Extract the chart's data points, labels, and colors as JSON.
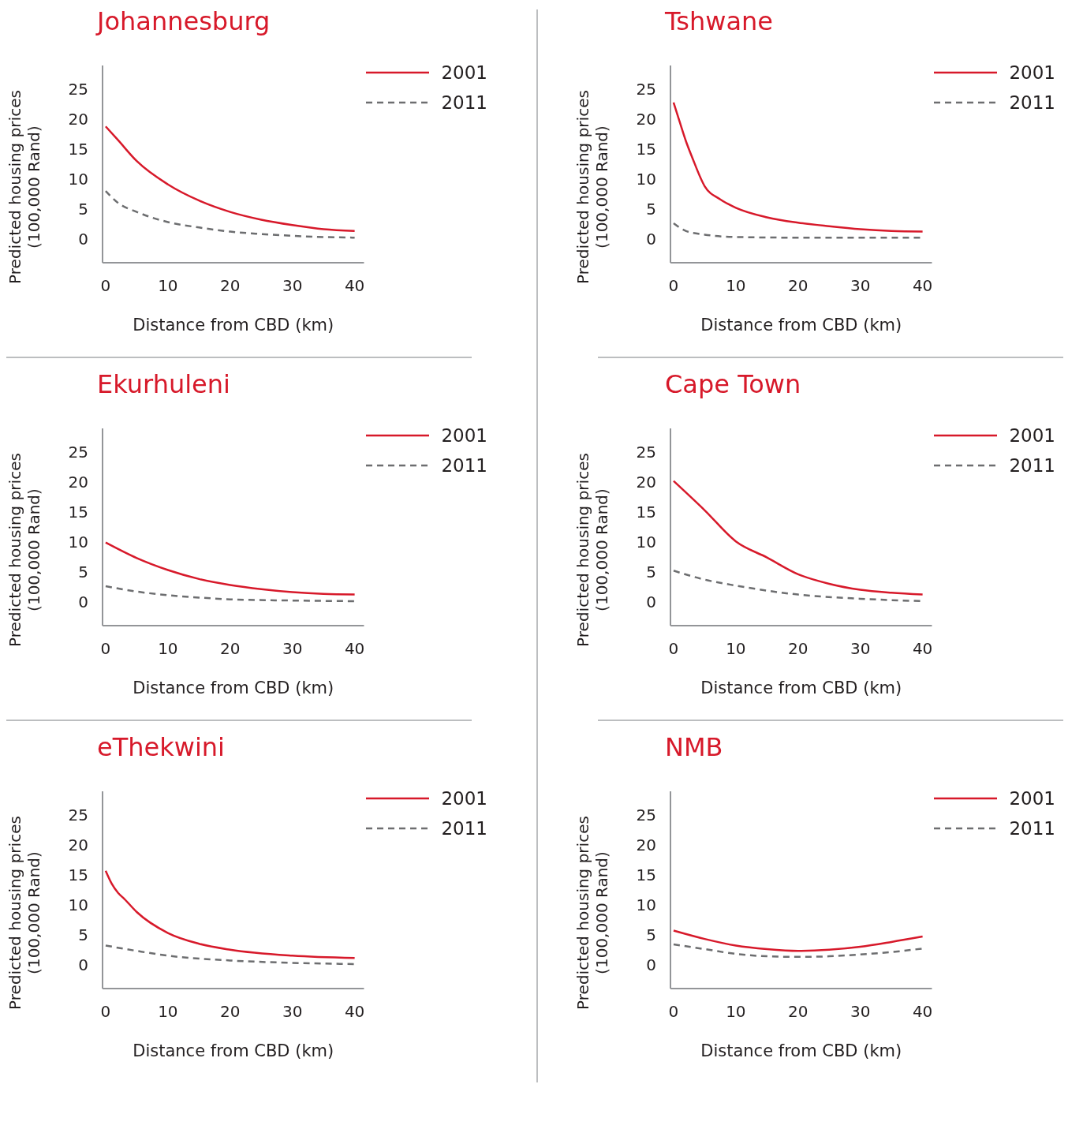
{
  "chart_data": [
    {
      "type": "line",
      "title": "Johannesburg",
      "xlabel": "Distance from CBD (km)",
      "ylabel": "Predicted housing prices (100,000 Rand)",
      "xlim": [
        -0.5,
        41.5
      ],
      "xticks": [
        0,
        10,
        20,
        30,
        40
      ],
      "ylim": [
        -4,
        29
      ],
      "yticks": [
        0,
        5,
        10,
        15,
        20,
        25
      ],
      "legend": "top right",
      "series": [
        {
          "name": "2001",
          "color": "#d7192a",
          "line_style": "solid",
          "x": [
            0,
            2,
            5,
            10,
            15,
            20,
            25,
            30,
            35,
            40
          ],
          "values": [
            18.8,
            16.5,
            13,
            9.1,
            6.4,
            4.5,
            3.2,
            2.3,
            1.6,
            1.3
          ]
        },
        {
          "name": "2011",
          "color": "#6d6e70",
          "line_style": "dashed",
          "x": [
            0,
            2,
            5,
            10,
            15,
            20,
            25,
            30,
            35,
            40
          ],
          "values": [
            8,
            6,
            4.5,
            2.8,
            1.9,
            1.2,
            0.8,
            0.5,
            0.3,
            0.2
          ]
        }
      ]
    },
    {
      "type": "line",
      "title": "Tshwane",
      "xlabel": "Distance from CBD (km)",
      "ylabel": "Predicted housing prices (100,000 Rand)",
      "xlim": [
        -0.5,
        41.5
      ],
      "xticks": [
        0,
        10,
        20,
        30,
        40
      ],
      "ylim": [
        -4,
        29
      ],
      "yticks": [
        0,
        5,
        10,
        15,
        20,
        25
      ],
      "legend": "top right",
      "series": [
        {
          "name": "2001",
          "color": "#d7192a",
          "line_style": "solid",
          "x": [
            0,
            1,
            2,
            3,
            5,
            7.5,
            10,
            15,
            20,
            25,
            30,
            35,
            40
          ],
          "values": [
            22.8,
            19.5,
            16.3,
            13.6,
            8.8,
            6.6,
            5.2,
            3.6,
            2.7,
            2.1,
            1.6,
            1.3,
            1.2
          ]
        },
        {
          "name": "2011",
          "color": "#6d6e70",
          "line_style": "dashed",
          "x": [
            0,
            2,
            5,
            10,
            20,
            30,
            40
          ],
          "values": [
            2.6,
            1.3,
            0.7,
            0.3,
            0.2,
            0.2,
            0.2
          ]
        }
      ]
    },
    {
      "type": "line",
      "title": "Ekurhuleni",
      "xlabel": "Distance from CBD (km)",
      "ylabel": "Predicted housing prices (100,000 Rand)",
      "xlim": [
        -0.5,
        41.5
      ],
      "xticks": [
        0,
        10,
        20,
        30,
        40
      ],
      "ylim": [
        -4,
        29
      ],
      "yticks": [
        0,
        5,
        10,
        15,
        20,
        25
      ],
      "legend": "top right",
      "series": [
        {
          "name": "2001",
          "color": "#d7192a",
          "line_style": "solid",
          "x": [
            0,
            5,
            10,
            15,
            20,
            25,
            30,
            35,
            40
          ],
          "values": [
            9.9,
            7.3,
            5.3,
            3.8,
            2.8,
            2.1,
            1.6,
            1.3,
            1.2
          ]
        },
        {
          "name": "2011",
          "color": "#6d6e70",
          "line_style": "dashed",
          "x": [
            0,
            5,
            10,
            15,
            20,
            30,
            40
          ],
          "values": [
            2.6,
            1.7,
            1.1,
            0.7,
            0.4,
            0.2,
            0.1
          ]
        }
      ]
    },
    {
      "type": "line",
      "title": "Cape Town",
      "xlabel": "Distance from CBD (km)",
      "ylabel": "Predicted housing prices (100,000 Rand)",
      "xlim": [
        -0.5,
        41.5
      ],
      "xticks": [
        0,
        10,
        20,
        30,
        40
      ],
      "ylim": [
        -4,
        29
      ],
      "yticks": [
        0,
        5,
        10,
        15,
        20,
        25
      ],
      "legend": "top right",
      "series": [
        {
          "name": "2001",
          "color": "#d7192a",
          "line_style": "solid",
          "x": [
            0,
            5,
            10,
            15,
            20,
            25,
            30,
            35,
            40
          ],
          "values": [
            20.2,
            15.3,
            10.1,
            7.4,
            4.6,
            3,
            2,
            1.5,
            1.2
          ]
        },
        {
          "name": "2011",
          "color": "#6d6e70",
          "line_style": "dashed",
          "x": [
            0,
            5,
            10,
            20,
            30,
            40
          ],
          "values": [
            5.2,
            3.7,
            2.7,
            1.2,
            0.5,
            0.1
          ]
        }
      ]
    },
    {
      "type": "line",
      "title": "eThekwini",
      "xlabel": "Distance from CBD (km)",
      "ylabel": "Predicted housing prices (100,000 Rand)",
      "xlim": [
        -0.5,
        41.5
      ],
      "xticks": [
        0,
        10,
        20,
        30,
        40
      ],
      "ylim": [
        -4,
        29
      ],
      "yticks": [
        0,
        5,
        10,
        15,
        20,
        25
      ],
      "legend": "top right",
      "series": [
        {
          "name": "2001",
          "color": "#d7192a",
          "line_style": "solid",
          "x": [
            0,
            1,
            2,
            3,
            5,
            10,
            15,
            20,
            30,
            40
          ],
          "values": [
            15.7,
            13.5,
            12,
            11,
            8.8,
            5.3,
            3.5,
            2.5,
            1.5,
            1.1
          ]
        },
        {
          "name": "2011",
          "color": "#6d6e70",
          "line_style": "dashed",
          "x": [
            0,
            5,
            10,
            20,
            30,
            40
          ],
          "values": [
            3.2,
            2.3,
            1.5,
            0.7,
            0.3,
            0.1
          ]
        }
      ]
    },
    {
      "type": "line",
      "title": "NMB",
      "xlabel": "Distance from CBD (km)",
      "ylabel": "Predicted housing prices (100,000 Rand)",
      "xlim": [
        -0.5,
        41.5
      ],
      "xticks": [
        0,
        10,
        20,
        30,
        40
      ],
      "ylim": [
        -4,
        29
      ],
      "yticks": [
        0,
        5,
        10,
        15,
        20,
        25
      ],
      "legend": "top right",
      "series": [
        {
          "name": "2001",
          "color": "#d7192a",
          "line_style": "solid",
          "x": [
            0,
            5,
            10,
            15,
            20,
            25,
            30,
            35,
            40
          ],
          "values": [
            5.7,
            4.3,
            3.2,
            2.6,
            2.3,
            2.5,
            3,
            3.8,
            4.7
          ]
        },
        {
          "name": "2011",
          "color": "#6d6e70",
          "line_style": "dashed",
          "x": [
            0,
            5,
            10,
            15,
            20,
            25,
            30,
            35,
            40
          ],
          "values": [
            3.4,
            2.6,
            1.8,
            1.4,
            1.3,
            1.4,
            1.7,
            2.1,
            2.7
          ]
        }
      ]
    }
  ]
}
